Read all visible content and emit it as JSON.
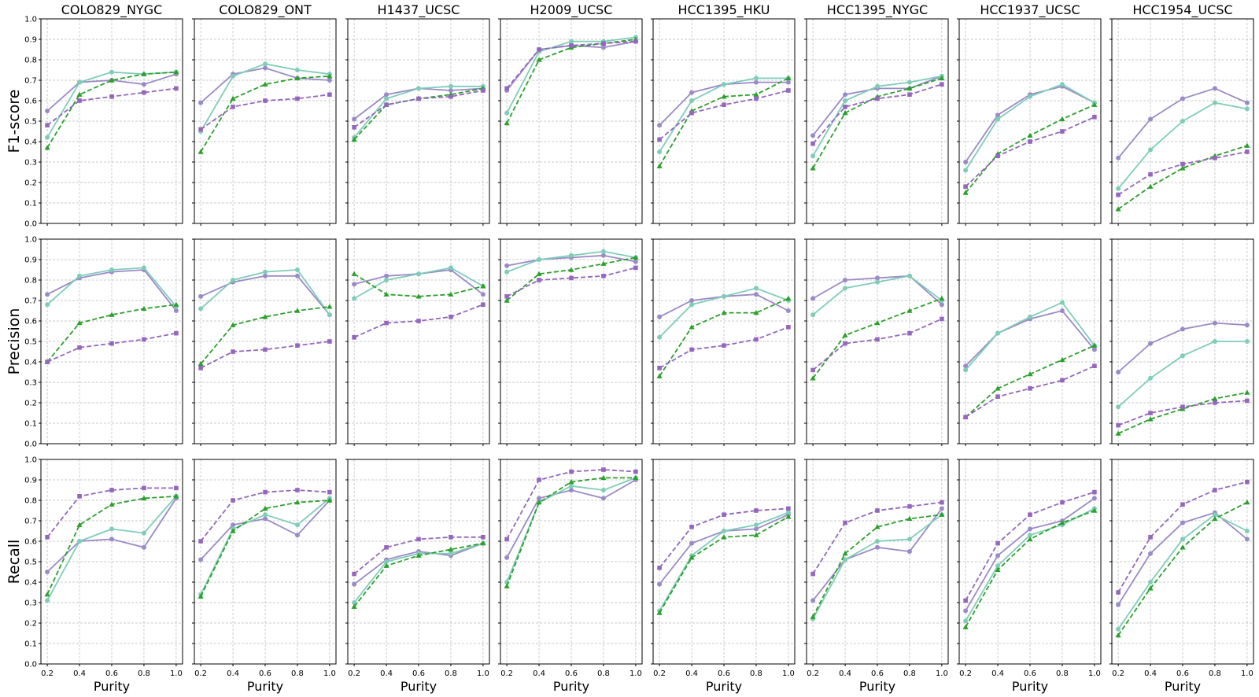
{
  "chart_data": {
    "type": "line",
    "layout": {
      "rows": 3,
      "cols": 8
    },
    "columns": [
      "COLO829_NYGC",
      "COLO829_ONT",
      "H1437_UCSC",
      "H2009_UCSC",
      "HCC1395_HKU",
      "HCC1395_NYGC",
      "HCC1937_UCSC",
      "HCC1954_UCSC"
    ],
    "rows": [
      "F1-score",
      "Precision",
      "Recall"
    ],
    "x": [
      0.2,
      0.4,
      0.6,
      0.8,
      1.0
    ],
    "x_tick_labels": [
      "0.2",
      "0.4",
      "0.6",
      "0.8",
      "1.0"
    ],
    "xlabel": "Purity",
    "ylim": [
      0,
      1
    ],
    "y_tick_labels": [
      "0.0",
      "0.1",
      "0.2",
      "0.3",
      "0.4",
      "0.5",
      "0.6",
      "0.7",
      "0.8",
      "0.9",
      "1.0"
    ],
    "grid": true,
    "series_styles": [
      {
        "color": "#9b8ac8",
        "marker": "circle",
        "dash": "solid"
      },
      {
        "color": "#7fcdb8",
        "marker": "circle",
        "dash": "solid"
      },
      {
        "color": "#2ca02c",
        "marker": "triangle",
        "dash": "dashed"
      },
      {
        "color": "#9467bd",
        "marker": "square",
        "dash": "dashed"
      }
    ],
    "panels": [
      [
        [
          [
            0.55,
            0.69,
            0.7,
            0.68,
            0.73
          ],
          [
            0.42,
            0.69,
            0.74,
            0.73,
            0.74
          ],
          [
            0.37,
            0.63,
            0.7,
            0.73,
            0.74
          ],
          [
            0.48,
            0.6,
            0.62,
            0.64,
            0.66
          ]
        ],
        [
          [
            0.59,
            0.73,
            0.76,
            0.71,
            0.7
          ],
          [
            0.45,
            0.72,
            0.78,
            0.75,
            0.73
          ],
          [
            0.35,
            0.61,
            0.68,
            0.71,
            0.72
          ],
          [
            0.46,
            0.57,
            0.6,
            0.61,
            0.63
          ]
        ],
        [
          [
            0.51,
            0.63,
            0.66,
            0.65,
            0.66
          ],
          [
            0.42,
            0.61,
            0.66,
            0.67,
            0.67
          ],
          [
            0.41,
            0.58,
            0.61,
            0.63,
            0.66
          ],
          [
            0.47,
            0.58,
            0.61,
            0.62,
            0.65
          ]
        ],
        [
          [
            0.65,
            0.85,
            0.87,
            0.86,
            0.89
          ],
          [
            0.54,
            0.84,
            0.89,
            0.89,
            0.91
          ],
          [
            0.49,
            0.8,
            0.86,
            0.88,
            0.9
          ],
          [
            0.66,
            0.85,
            0.87,
            0.88,
            0.89
          ]
        ],
        [
          [
            0.48,
            0.64,
            0.68,
            0.69,
            0.69
          ],
          [
            0.35,
            0.6,
            0.68,
            0.71,
            0.71
          ],
          [
            0.28,
            0.55,
            0.62,
            0.63,
            0.71
          ],
          [
            0.41,
            0.54,
            0.58,
            0.61,
            0.65
          ]
        ],
        [
          [
            0.43,
            0.63,
            0.66,
            0.66,
            0.72
          ],
          [
            0.33,
            0.6,
            0.67,
            0.69,
            0.72
          ],
          [
            0.27,
            0.54,
            0.62,
            0.66,
            0.71
          ],
          [
            0.39,
            0.57,
            0.61,
            0.63,
            0.68
          ]
        ],
        [
          [
            0.3,
            0.53,
            0.63,
            0.67,
            0.59
          ],
          [
            0.26,
            0.51,
            0.62,
            0.68,
            0.59
          ],
          [
            0.15,
            0.34,
            0.43,
            0.51,
            0.58
          ],
          [
            0.18,
            0.33,
            0.4,
            0.45,
            0.52
          ]
        ],
        [
          [
            0.32,
            0.51,
            0.61,
            0.66,
            0.59
          ],
          [
            0.17,
            0.36,
            0.5,
            0.59,
            0.56
          ],
          [
            0.07,
            0.18,
            0.27,
            0.33,
            0.38
          ],
          [
            0.14,
            0.24,
            0.29,
            0.32,
            0.35
          ]
        ]
      ],
      [
        [
          [
            0.73,
            0.81,
            0.84,
            0.85,
            0.65
          ],
          [
            0.68,
            0.82,
            0.85,
            0.86,
            0.67
          ],
          [
            0.4,
            0.59,
            0.63,
            0.66,
            0.68
          ],
          [
            0.4,
            0.47,
            0.49,
            0.51,
            0.54
          ]
        ],
        [
          [
            0.72,
            0.79,
            0.82,
            0.82,
            0.63
          ],
          [
            0.66,
            0.8,
            0.84,
            0.85,
            0.63
          ],
          [
            0.39,
            0.58,
            0.62,
            0.65,
            0.67
          ],
          [
            0.37,
            0.45,
            0.46,
            0.48,
            0.5
          ]
        ],
        [
          [
            0.78,
            0.82,
            0.83,
            0.85,
            0.73
          ],
          [
            0.71,
            0.8,
            0.83,
            0.86,
            0.77
          ],
          [
            0.83,
            0.73,
            0.72,
            0.73,
            0.77
          ],
          [
            0.52,
            0.59,
            0.6,
            0.62,
            0.68
          ]
        ],
        [
          [
            0.87,
            0.9,
            0.91,
            0.92,
            0.89
          ],
          [
            0.84,
            0.9,
            0.92,
            0.94,
            0.91
          ],
          [
            0.7,
            0.83,
            0.85,
            0.88,
            0.91
          ],
          [
            0.72,
            0.8,
            0.81,
            0.82,
            0.86
          ]
        ],
        [
          [
            0.62,
            0.7,
            0.72,
            0.73,
            0.65
          ],
          [
            0.52,
            0.68,
            0.72,
            0.76,
            0.7
          ],
          [
            0.33,
            0.57,
            0.64,
            0.64,
            0.71
          ],
          [
            0.37,
            0.46,
            0.48,
            0.51,
            0.57
          ]
        ],
        [
          [
            0.71,
            0.8,
            0.81,
            0.82,
            0.68
          ],
          [
            0.63,
            0.76,
            0.79,
            0.82,
            0.7
          ],
          [
            0.32,
            0.53,
            0.59,
            0.65,
            0.71
          ],
          [
            0.36,
            0.49,
            0.51,
            0.54,
            0.61
          ]
        ],
        [
          [
            0.38,
            0.54,
            0.61,
            0.65,
            0.46
          ],
          [
            0.36,
            0.54,
            0.62,
            0.69,
            0.48
          ],
          [
            0.13,
            0.27,
            0.34,
            0.41,
            0.48
          ],
          [
            0.13,
            0.23,
            0.27,
            0.31,
            0.38
          ]
        ],
        [
          [
            0.35,
            0.49,
            0.56,
            0.59,
            0.58
          ],
          [
            0.18,
            0.32,
            0.43,
            0.5,
            0.5
          ],
          [
            0.05,
            0.12,
            0.17,
            0.22,
            0.25
          ],
          [
            0.09,
            0.15,
            0.18,
            0.2,
            0.21
          ]
        ]
      ],
      [
        [
          [
            0.45,
            0.6,
            0.61,
            0.57,
            0.81
          ],
          [
            0.31,
            0.6,
            0.66,
            0.64,
            0.82
          ],
          [
            0.34,
            0.68,
            0.78,
            0.81,
            0.82
          ],
          [
            0.62,
            0.82,
            0.85,
            0.86,
            0.86
          ]
        ],
        [
          [
            0.51,
            0.68,
            0.71,
            0.63,
            0.8
          ],
          [
            0.34,
            0.66,
            0.73,
            0.68,
            0.81
          ],
          [
            0.33,
            0.65,
            0.76,
            0.79,
            0.8
          ],
          [
            0.6,
            0.8,
            0.84,
            0.85,
            0.84
          ]
        ],
        [
          [
            0.39,
            0.51,
            0.55,
            0.53,
            0.59
          ],
          [
            0.3,
            0.5,
            0.54,
            0.54,
            0.59
          ],
          [
            0.28,
            0.48,
            0.53,
            0.56,
            0.59
          ],
          [
            0.44,
            0.57,
            0.61,
            0.62,
            0.62
          ]
        ],
        [
          [
            0.52,
            0.81,
            0.85,
            0.81,
            0.9
          ],
          [
            0.4,
            0.79,
            0.87,
            0.85,
            0.91
          ],
          [
            0.38,
            0.79,
            0.89,
            0.91,
            0.91
          ],
          [
            0.61,
            0.9,
            0.94,
            0.95,
            0.94
          ]
        ],
        [
          [
            0.39,
            0.59,
            0.65,
            0.66,
            0.73
          ],
          [
            0.26,
            0.53,
            0.65,
            0.68,
            0.74
          ],
          [
            0.25,
            0.52,
            0.62,
            0.63,
            0.72
          ],
          [
            0.47,
            0.67,
            0.73,
            0.75,
            0.76
          ]
        ],
        [
          [
            0.31,
            0.51,
            0.57,
            0.55,
            0.76
          ],
          [
            0.22,
            0.51,
            0.6,
            0.61,
            0.73
          ],
          [
            0.23,
            0.54,
            0.67,
            0.71,
            0.73
          ],
          [
            0.44,
            0.69,
            0.75,
            0.77,
            0.79
          ]
        ],
        [
          [
            0.26,
            0.53,
            0.66,
            0.7,
            0.81
          ],
          [
            0.21,
            0.48,
            0.63,
            0.68,
            0.76
          ],
          [
            0.18,
            0.46,
            0.61,
            0.69,
            0.75
          ],
          [
            0.31,
            0.59,
            0.73,
            0.79,
            0.84
          ]
        ],
        [
          [
            0.29,
            0.54,
            0.69,
            0.74,
            0.61
          ],
          [
            0.17,
            0.4,
            0.61,
            0.73,
            0.65
          ],
          [
            0.14,
            0.37,
            0.57,
            0.71,
            0.79
          ],
          [
            0.35,
            0.62,
            0.78,
            0.85,
            0.89
          ]
        ]
      ]
    ]
  }
}
